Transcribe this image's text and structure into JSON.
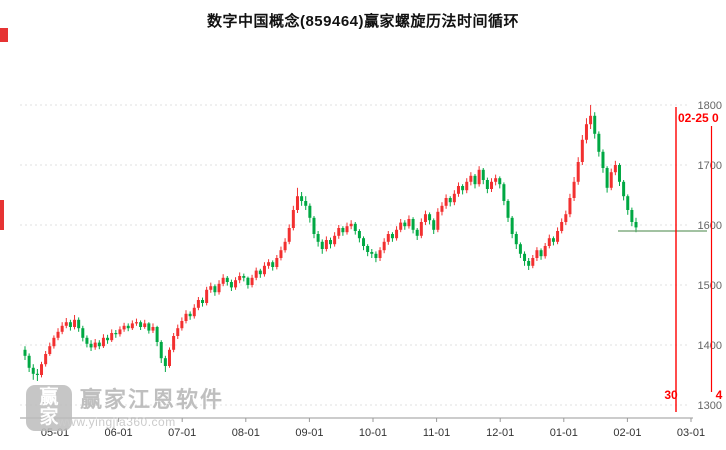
{
  "title": "数字中国概念(859464)赢家螺旋历法时间循环",
  "watermark": {
    "logo_text": "赢家",
    "brand": "赢家江恩软件",
    "url": "www.yingjia360.com"
  },
  "cycle_markers": {
    "top_label": "02-25 0",
    "bottom_left_label": "30",
    "bottom_right_label": "4",
    "color": "#ff0000"
  },
  "price_line": {
    "value": 1590,
    "color": "#6a9e6a"
  },
  "colors": {
    "up": "#f23030",
    "down": "#00a843",
    "grid": "#e2e2e2",
    "axis": "#9a9a9a",
    "xtick_text": "#333333",
    "ytick_text": "#666666",
    "marker": "#e63333"
  },
  "chart_data": {
    "type": "candlestick",
    "title": "数字中国概念(859464)赢家螺旋历法时间循环",
    "symbol": "859464",
    "x_ticks": [
      "05-01",
      "06-01",
      "07-01",
      "08-01",
      "09-01",
      "10-01",
      "11-01",
      "12-01",
      "01-01",
      "02-01",
      "03-01"
    ],
    "y_ticks": [
      1800,
      1700,
      1600,
      1500,
      1400,
      1300
    ],
    "ylim": [
      1278,
      1810
    ],
    "legend": "red = up candle, green = down candle",
    "candles": [
      [
        1392,
        1398,
        1375,
        1382
      ],
      [
        1382,
        1386,
        1355,
        1362
      ],
      [
        1362,
        1368,
        1342,
        1352
      ],
      [
        1352,
        1360,
        1340,
        1350
      ],
      [
        1350,
        1372,
        1346,
        1368
      ],
      [
        1368,
        1390,
        1364,
        1385
      ],
      [
        1385,
        1404,
        1382,
        1398
      ],
      [
        1398,
        1416,
        1394,
        1412
      ],
      [
        1412,
        1428,
        1408,
        1422
      ],
      [
        1422,
        1438,
        1418,
        1432
      ],
      [
        1432,
        1445,
        1428,
        1438
      ],
      [
        1438,
        1442,
        1424,
        1430
      ],
      [
        1430,
        1450,
        1426,
        1442
      ],
      [
        1442,
        1446,
        1422,
        1428
      ],
      [
        1428,
        1432,
        1406,
        1412
      ],
      [
        1412,
        1416,
        1396,
        1402
      ],
      [
        1402,
        1408,
        1390,
        1396
      ],
      [
        1396,
        1410,
        1392,
        1404
      ],
      [
        1404,
        1408,
        1393,
        1398
      ],
      [
        1398,
        1418,
        1395,
        1412
      ],
      [
        1412,
        1417,
        1402,
        1408
      ],
      [
        1408,
        1426,
        1405,
        1420
      ],
      [
        1420,
        1425,
        1412,
        1418
      ],
      [
        1418,
        1431,
        1414,
        1426
      ],
      [
        1426,
        1437,
        1422,
        1432
      ],
      [
        1432,
        1436,
        1423,
        1428
      ],
      [
        1428,
        1441,
        1425,
        1436
      ],
      [
        1436,
        1444,
        1432,
        1438
      ],
      [
        1438,
        1441,
        1425,
        1430
      ],
      [
        1430,
        1442,
        1427,
        1436
      ],
      [
        1436,
        1438,
        1419,
        1424
      ],
      [
        1424,
        1436,
        1420,
        1430
      ],
      [
        1430,
        1432,
        1398,
        1405
      ],
      [
        1405,
        1408,
        1370,
        1378
      ],
      [
        1378,
        1382,
        1355,
        1365
      ],
      [
        1365,
        1396,
        1362,
        1392
      ],
      [
        1392,
        1420,
        1388,
        1415
      ],
      [
        1415,
        1434,
        1410,
        1428
      ],
      [
        1428,
        1446,
        1424,
        1440
      ],
      [
        1440,
        1458,
        1436,
        1452
      ],
      [
        1452,
        1456,
        1442,
        1448
      ],
      [
        1448,
        1468,
        1444,
        1462
      ],
      [
        1462,
        1480,
        1458,
        1475
      ],
      [
        1475,
        1479,
        1464,
        1470
      ],
      [
        1470,
        1497,
        1466,
        1492
      ],
      [
        1492,
        1504,
        1487,
        1498
      ],
      [
        1498,
        1501,
        1482,
        1488
      ],
      [
        1488,
        1508,
        1484,
        1502
      ],
      [
        1502,
        1518,
        1498,
        1512
      ],
      [
        1512,
        1515,
        1499,
        1505
      ],
      [
        1505,
        1509,
        1490,
        1496
      ],
      [
        1496,
        1513,
        1492,
        1508
      ],
      [
        1508,
        1521,
        1503,
        1515
      ],
      [
        1515,
        1519,
        1506,
        1512
      ],
      [
        1512,
        1514,
        1494,
        1500
      ],
      [
        1500,
        1517,
        1496,
        1512
      ],
      [
        1512,
        1529,
        1508,
        1524
      ],
      [
        1524,
        1527,
        1512,
        1518
      ],
      [
        1518,
        1538,
        1514,
        1532
      ],
      [
        1532,
        1543,
        1527,
        1538
      ],
      [
        1538,
        1541,
        1524,
        1530
      ],
      [
        1530,
        1550,
        1526,
        1545
      ],
      [
        1545,
        1564,
        1541,
        1558
      ],
      [
        1558,
        1578,
        1554,
        1572
      ],
      [
        1572,
        1601,
        1568,
        1595
      ],
      [
        1595,
        1632,
        1591,
        1625
      ],
      [
        1625,
        1662,
        1620,
        1648
      ],
      [
        1648,
        1655,
        1632,
        1640
      ],
      [
        1640,
        1648,
        1625,
        1632
      ],
      [
        1632,
        1636,
        1604,
        1612
      ],
      [
        1612,
        1615,
        1578,
        1585
      ],
      [
        1585,
        1590,
        1564,
        1572
      ],
      [
        1572,
        1576,
        1552,
        1560
      ],
      [
        1560,
        1581,
        1556,
        1575
      ],
      [
        1575,
        1579,
        1561,
        1568
      ],
      [
        1568,
        1588,
        1564,
        1582
      ],
      [
        1582,
        1600,
        1577,
        1595
      ],
      [
        1595,
        1598,
        1582,
        1588
      ],
      [
        1588,
        1604,
        1584,
        1598
      ],
      [
        1598,
        1608,
        1593,
        1602
      ],
      [
        1602,
        1605,
        1584,
        1590
      ],
      [
        1590,
        1593,
        1571,
        1578
      ],
      [
        1578,
        1581,
        1558,
        1565
      ],
      [
        1565,
        1568,
        1548,
        1555
      ],
      [
        1555,
        1560,
        1545,
        1552
      ],
      [
        1552,
        1556,
        1538,
        1545
      ],
      [
        1545,
        1563,
        1540,
        1558
      ],
      [
        1558,
        1578,
        1553,
        1572
      ],
      [
        1572,
        1590,
        1567,
        1585
      ],
      [
        1585,
        1588,
        1572,
        1578
      ],
      [
        1578,
        1598,
        1574,
        1592
      ],
      [
        1592,
        1610,
        1588,
        1604
      ],
      [
        1604,
        1608,
        1592,
        1598
      ],
      [
        1598,
        1616,
        1594,
        1610
      ],
      [
        1610,
        1613,
        1586,
        1592
      ],
      [
        1592,
        1595,
        1575,
        1582
      ],
      [
        1582,
        1611,
        1578,
        1605
      ],
      [
        1605,
        1624,
        1600,
        1618
      ],
      [
        1618,
        1621,
        1601,
        1608
      ],
      [
        1608,
        1611,
        1585,
        1592
      ],
      [
        1592,
        1628,
        1588,
        1622
      ],
      [
        1622,
        1638,
        1616,
        1632
      ],
      [
        1632,
        1651,
        1627,
        1645
      ],
      [
        1645,
        1648,
        1631,
        1638
      ],
      [
        1638,
        1658,
        1633,
        1652
      ],
      [
        1652,
        1671,
        1647,
        1665
      ],
      [
        1665,
        1668,
        1651,
        1658
      ],
      [
        1658,
        1678,
        1653,
        1672
      ],
      [
        1672,
        1688,
        1666,
        1682
      ],
      [
        1682,
        1685,
        1661,
        1668
      ],
      [
        1668,
        1698,
        1664,
        1692
      ],
      [
        1692,
        1695,
        1668,
        1675
      ],
      [
        1675,
        1679,
        1653,
        1660
      ],
      [
        1660,
        1678,
        1655,
        1672
      ],
      [
        1672,
        1684,
        1666,
        1678
      ],
      [
        1678,
        1681,
        1661,
        1668
      ],
      [
        1668,
        1671,
        1633,
        1640
      ],
      [
        1640,
        1643,
        1605,
        1612
      ],
      [
        1612,
        1615,
        1578,
        1585
      ],
      [
        1585,
        1589,
        1560,
        1568
      ],
      [
        1568,
        1571,
        1545,
        1552
      ],
      [
        1552,
        1556,
        1532,
        1540
      ],
      [
        1540,
        1545,
        1525,
        1532
      ],
      [
        1532,
        1550,
        1528,
        1545
      ],
      [
        1545,
        1563,
        1540,
        1558
      ],
      [
        1558,
        1561,
        1542,
        1548
      ],
      [
        1548,
        1570,
        1544,
        1565
      ],
      [
        1565,
        1584,
        1561,
        1578
      ],
      [
        1578,
        1581,
        1566,
        1572
      ],
      [
        1572,
        1596,
        1568,
        1590
      ],
      [
        1590,
        1611,
        1586,
        1605
      ],
      [
        1605,
        1624,
        1600,
        1618
      ],
      [
        1618,
        1652,
        1613,
        1645
      ],
      [
        1645,
        1680,
        1640,
        1672
      ],
      [
        1672,
        1713,
        1667,
        1705
      ],
      [
        1705,
        1750,
        1700,
        1742
      ],
      [
        1742,
        1778,
        1736,
        1768
      ],
      [
        1768,
        1800,
        1760,
        1782
      ],
      [
        1782,
        1788,
        1744,
        1752
      ],
      [
        1752,
        1756,
        1714,
        1722
      ],
      [
        1722,
        1726,
        1687,
        1695
      ],
      [
        1695,
        1698,
        1654,
        1662
      ],
      [
        1662,
        1694,
        1658,
        1688
      ],
      [
        1688,
        1707,
        1683,
        1700
      ],
      [
        1700,
        1703,
        1665,
        1672
      ],
      [
        1672,
        1675,
        1641,
        1648
      ],
      [
        1648,
        1651,
        1617,
        1625
      ],
      [
        1625,
        1629,
        1598,
        1605
      ],
      [
        1605,
        1612,
        1588,
        1596
      ]
    ]
  }
}
